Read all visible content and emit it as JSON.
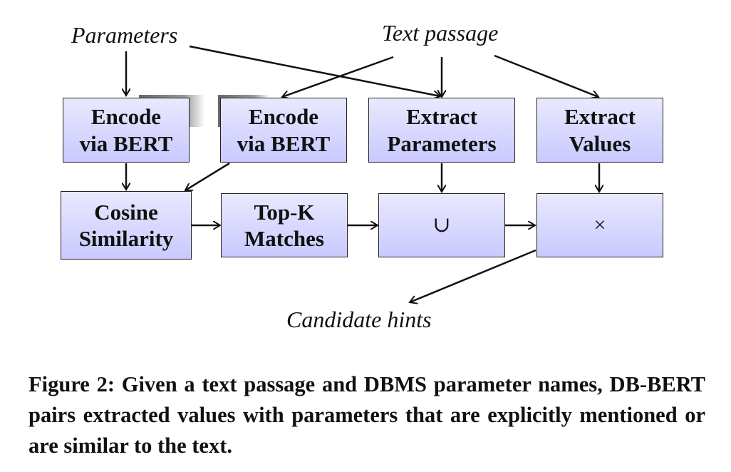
{
  "inputs": {
    "parameters": "Parameters",
    "text_passage": "Text passage"
  },
  "output": {
    "candidate_hints": "Candidate hints"
  },
  "nodes": {
    "encode_params": "Encode\nvia BERT",
    "encode_text": "Encode\nvia BERT",
    "extract_params": "Extract\nParameters",
    "extract_values": "Extract\nValues",
    "cosine": "Cosine\nSimilarity",
    "topk": "Top-K\nMatches",
    "union": "∪",
    "product": "×"
  },
  "caption": "Figure 2: Given a text passage and DBMS parameter names, DB-BERT pairs extracted values with parameters that are explicitly mentioned or are similar to the text.",
  "colors": {
    "box_fill_top": "#e9e9ff",
    "box_fill_bottom": "#c9c9ff",
    "stroke": "#111111"
  }
}
